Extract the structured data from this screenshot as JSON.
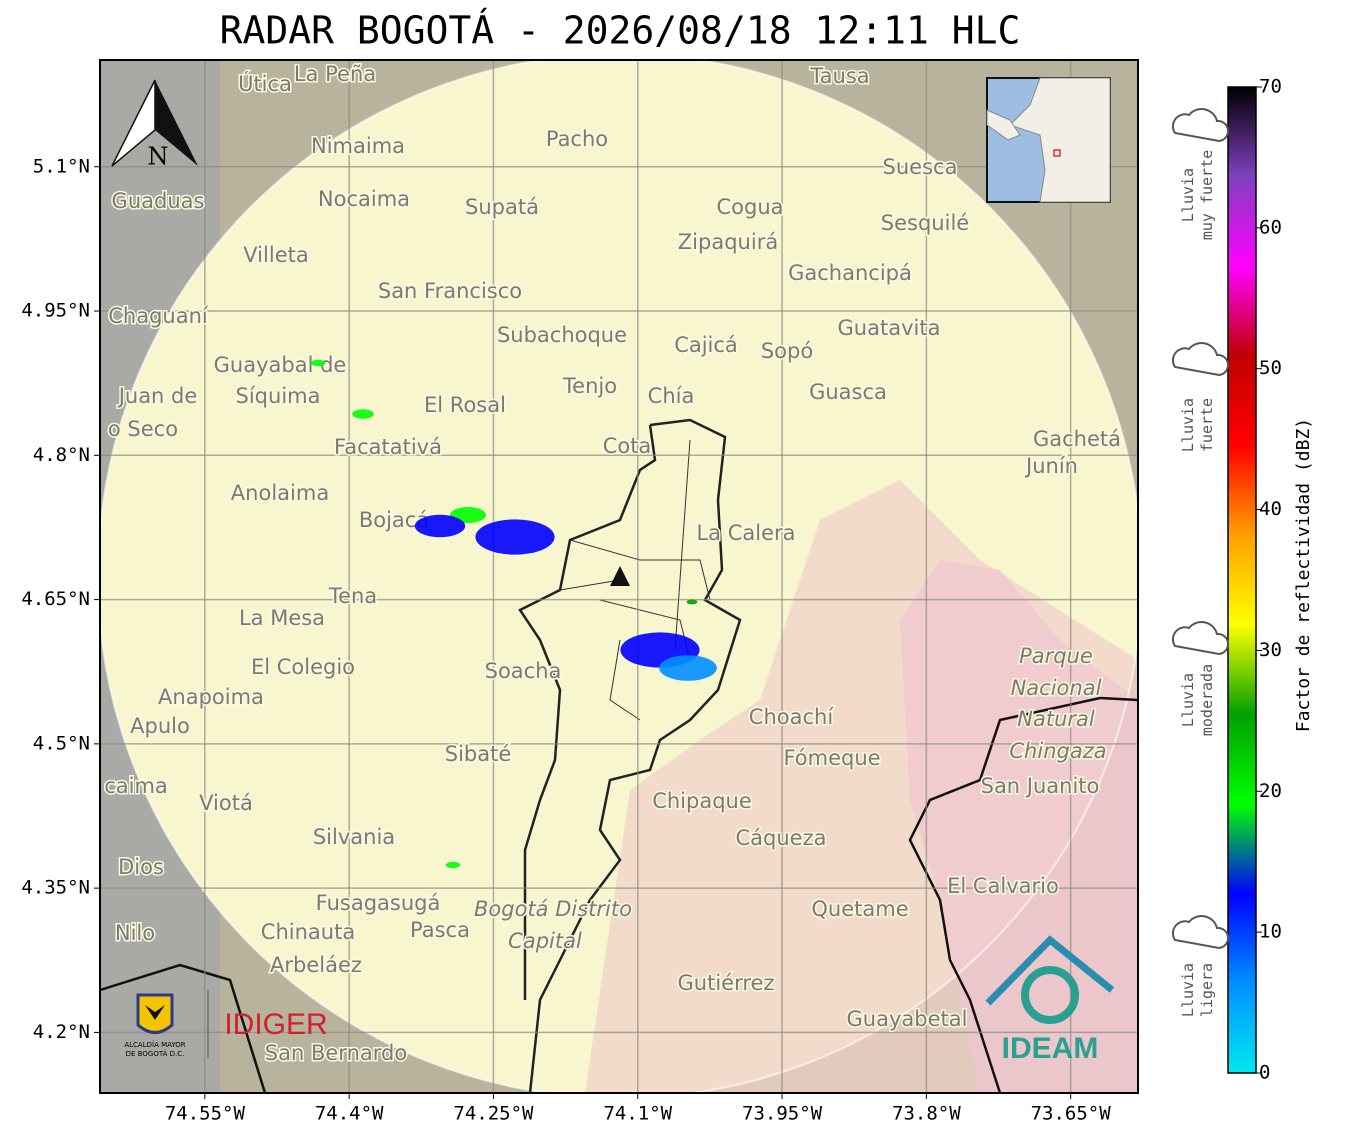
{
  "map": {
    "title": "RADAR BOGOTÁ - 2026/08/18 12:11 HLC",
    "xlim": [
      -74.659,
      -73.58
    ],
    "ylim": [
      4.137,
      5.211
    ],
    "xticks": [
      {
        "value": -74.55,
        "label": "74.55°W"
      },
      {
        "value": -74.4,
        "label": "74.4°W"
      },
      {
        "value": -74.25,
        "label": "74.25°W"
      },
      {
        "value": -74.1,
        "label": "74.1°W"
      },
      {
        "value": -73.95,
        "label": "73.95°W"
      },
      {
        "value": -73.8,
        "label": "73.8°W"
      },
      {
        "value": -73.65,
        "label": "73.65°W"
      }
    ],
    "yticks": [
      {
        "value": 5.1,
        "label": "5.1°N"
      },
      {
        "value": 4.95,
        "label": "4.95°N"
      },
      {
        "value": 4.8,
        "label": "4.8°N"
      },
      {
        "value": 4.65,
        "label": "4.65°N"
      },
      {
        "value": 4.5,
        "label": "4.5°N"
      },
      {
        "value": 4.35,
        "label": "4.35°N"
      },
      {
        "value": 4.2,
        "label": "4.2°N"
      }
    ],
    "grid": true,
    "north": "N",
    "places": [
      "La Peña",
      "Útica",
      "Tausa",
      "Pacho",
      "Nimaima",
      "Guaduas",
      "Nocaima",
      "Supatá",
      "Cogua",
      "Suesca",
      "Sesquilé",
      "Villeta",
      "Zipaquirá",
      "Gachancipá",
      "San Francisco",
      "Chaguaní",
      "Guatavita",
      "Subachoque",
      "Cajicá",
      "Sopó",
      "Guayabal de",
      "Síquima",
      "Tenjo",
      "Chía",
      "Guasca",
      "El Rosal",
      "Juan de",
      "o Seco",
      "Facatativá",
      "Cota",
      "Gachetá",
      "Junín",
      "Anolaima",
      "Bojacá",
      "La Calera",
      "Tena",
      "La Mesa",
      "El Colegio",
      "Soacha",
      "Parque",
      "Anapoima",
      "Nacional",
      "Natural",
      "Apulo",
      "Choachí",
      "Chingaza",
      "Sibaté",
      "Fómeque",
      "San Juanito",
      "caima",
      "Viotá",
      "Chipaque",
      "Silvania",
      "Cáqueza",
      "Dios",
      "El Calvario",
      "Fusagasugá",
      "Bogotá Distrito",
      "Quetame",
      "Nilo",
      "Chinauta",
      "Pasca",
      "Capital",
      "Arbeláez",
      "Gutiérrez",
      "Guayabetal",
      "San Bernardo"
    ],
    "echoes_dbz": [
      22,
      12,
      10,
      13,
      6,
      20,
      19,
      21,
      24
    ],
    "logos": {
      "alcaldia": [
        "ALCALDÍA MAYOR",
        "DE BOGOTÁ D.C."
      ],
      "idiger": "IDIGER",
      "ideam": "IDEAM"
    }
  },
  "colorbar": {
    "label": "Factor de reflectividad (dBZ)",
    "lim": [
      0,
      70
    ],
    "ticks": [
      0,
      10,
      20,
      30,
      40,
      50,
      60,
      70
    ],
    "colors": [
      "#00e8f0",
      "#0090ff",
      "#0000ff",
      "#00ff00",
      "#00a000",
      "#ffff00",
      "#ffa000",
      "#ff0000",
      "#c00000",
      "#ff00ff",
      "#8040c0",
      "#000000"
    ],
    "rain_classes": [
      [
        "Lluvia",
        "ligera"
      ],
      [
        "Lluvia",
        "moderada"
      ],
      [
        "Lluvia",
        "fuerte"
      ],
      [
        "Lluvia",
        "muy fuerte"
      ]
    ]
  }
}
